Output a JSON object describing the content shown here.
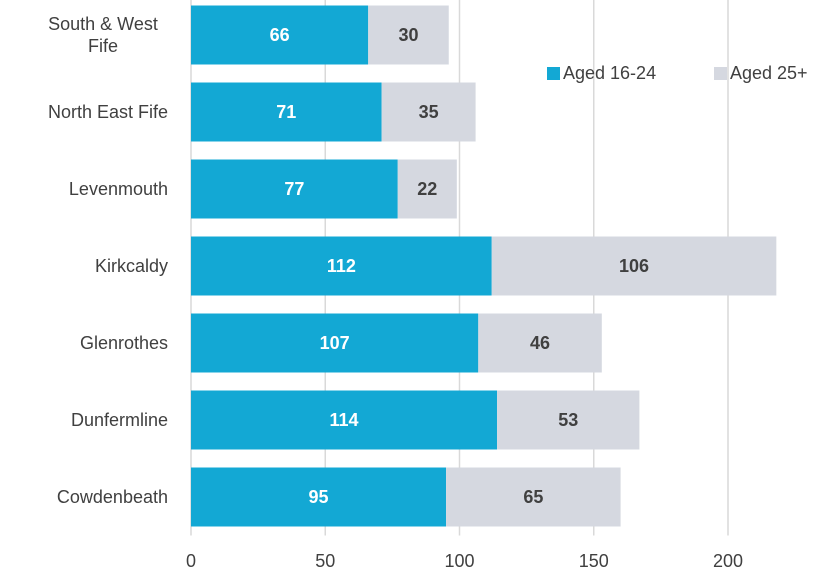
{
  "chart_data": {
    "type": "stacked-bar-horizontal",
    "categories": [
      "South & West Fife",
      "North East Fife",
      "Levenmouth",
      "Kirkcaldy",
      "Glenrothes",
      "Dunfermline",
      "Cowdenbeath"
    ],
    "series": [
      {
        "name": "Aged 16-24",
        "color": "#13a8d4",
        "values": [
          66,
          71,
          77,
          112,
          107,
          114,
          95
        ]
      },
      {
        "name": "Aged 25+",
        "color": "#d5d8e0",
        "values": [
          30,
          35,
          22,
          106,
          46,
          53,
          65
        ]
      }
    ],
    "xlim": [
      0,
      230
    ],
    "xticks": [
      0,
      50,
      100,
      150,
      200
    ],
    "grid": true,
    "legend": "top-right"
  }
}
